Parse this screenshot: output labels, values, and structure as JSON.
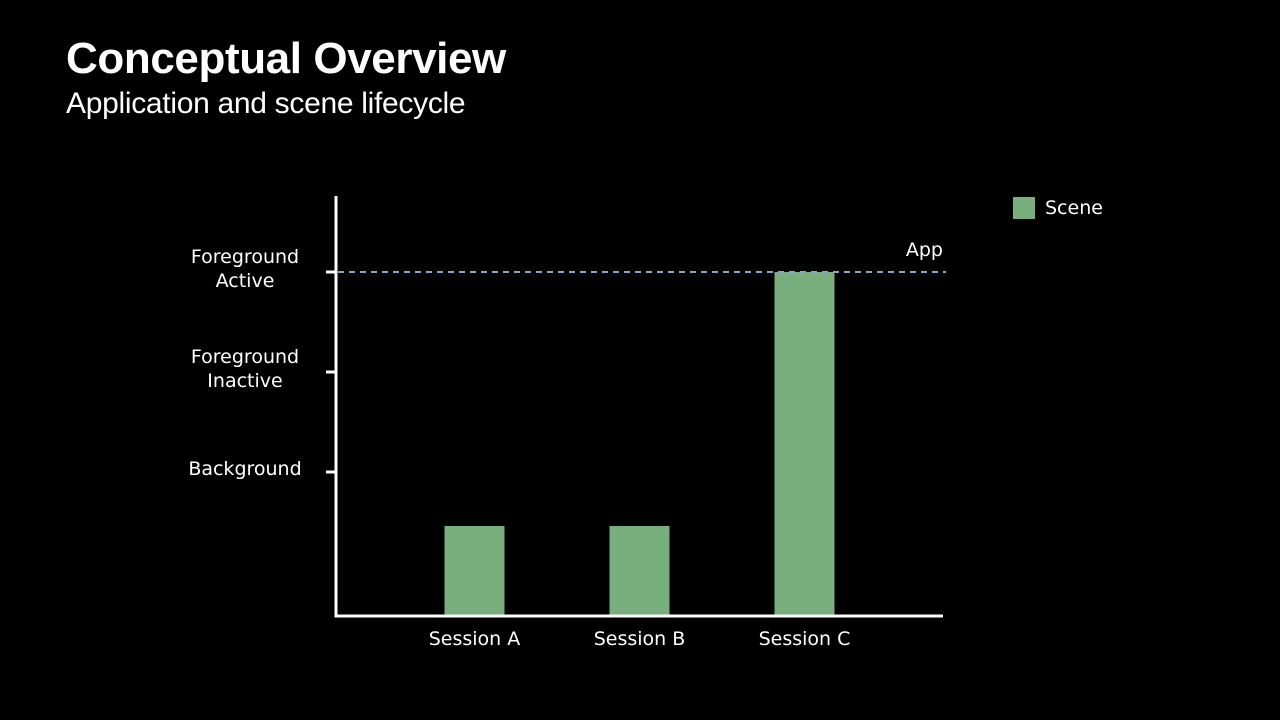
{
  "slide": {
    "title": "Conceptual Overview",
    "subtitle": "Application and scene lifecycle"
  },
  "colors": {
    "background": "#000000",
    "text": "#ffffff",
    "scene_bar": "#79ae7d",
    "app_line": "#8fa3c8"
  },
  "chart_data": {
    "type": "bar",
    "title": "Application and scene lifecycle",
    "categories": [
      "Session A",
      "Session B",
      "Session C"
    ],
    "y_levels": [
      [
        "Background"
      ],
      [
        "Foreground",
        "Inactive"
      ],
      [
        "Foreground",
        "Active"
      ]
    ],
    "ylim": [
      0,
      3.4
    ],
    "series": [
      {
        "name": "Scene",
        "values": [
          0.9,
          0.9,
          3.45
        ]
      }
    ],
    "reference_lines": [
      {
        "label": "App",
        "value": 3.45,
        "style": "dashed"
      }
    ],
    "legend": {
      "placement": "top-right",
      "entries": [
        "Scene"
      ]
    },
    "grid": false
  }
}
